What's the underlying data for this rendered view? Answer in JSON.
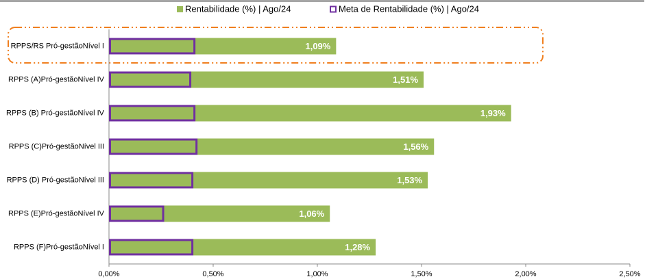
{
  "chart_data": {
    "type": "bar",
    "orientation": "horizontal",
    "categories": [
      "RPPS/RS Pró-gestãoNível I",
      "RPPS (A)Pró-gestãoNível IV",
      "RPPS (B) Pró-gestãoNível IV",
      "RPPS (C)Pró-gestãoNível III",
      "RPPS (D) Pró-gestãoNível III",
      "RPPS (E)Pró-gestãoNível IV",
      "RPPS (F)Pró-gestãoNível I"
    ],
    "series": [
      {
        "name": "Rentabilidade (%) | Ago/24",
        "color": "#9bbb59",
        "values": [
          1.09,
          1.51,
          1.93,
          1.56,
          1.53,
          1.06,
          1.28
        ],
        "value_labels": [
          "1,09%",
          "1,51%",
          "1,93%",
          "1,56%",
          "1,53%",
          "1,06%",
          "1,28%"
        ]
      },
      {
        "name": "Meta de Rentabilidade (%) | Ago/24",
        "color": "#7030a0",
        "values": [
          0.41,
          0.39,
          0.41,
          0.42,
          0.4,
          0.26,
          0.4
        ]
      }
    ],
    "xlim": [
      0,
      2.5
    ],
    "xticks": [
      {
        "value": 0,
        "label": "0,00%"
      },
      {
        "value": 0.5,
        "label": "0,50%"
      },
      {
        "value": 1,
        "label": "1,00%"
      },
      {
        "value": 1.5,
        "label": "1,50%"
      },
      {
        "value": 2,
        "label": "2,00%"
      },
      {
        "value": 2.5,
        "label": "2,50%"
      }
    ],
    "legend": "top"
  }
}
